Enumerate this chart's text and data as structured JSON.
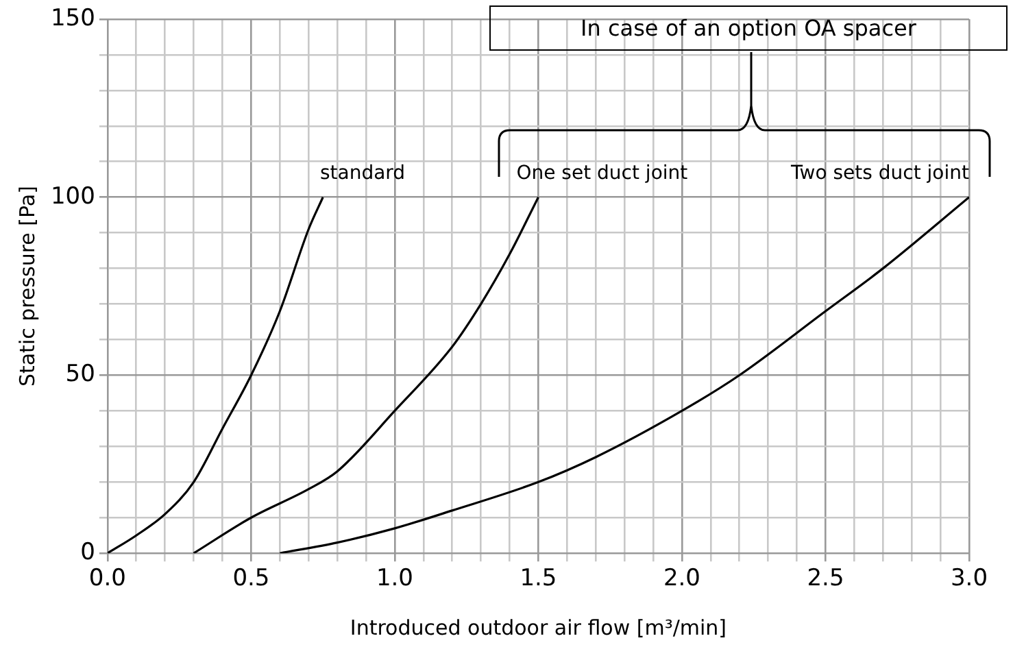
{
  "chart_data": {
    "type": "line",
    "xlabel": "Introduced outdoor air flow [m³/min]",
    "ylabel": "Static pressure [Pa]",
    "xlim": [
      0,
      3.0
    ],
    "ylim": [
      0,
      150
    ],
    "xticks": [
      {
        "value": 0,
        "label": "0.0"
      },
      {
        "value": 0.1,
        "label": null
      },
      {
        "value": 0.2,
        "label": null
      },
      {
        "value": 0.3,
        "label": null
      },
      {
        "value": 0.4,
        "label": null
      },
      {
        "value": 0.5,
        "label": "0.5"
      },
      {
        "value": 0.6,
        "label": null
      },
      {
        "value": 0.7,
        "label": null
      },
      {
        "value": 0.8,
        "label": null
      },
      {
        "value": 0.9,
        "label": null
      },
      {
        "value": 1.0,
        "label": "1.0"
      },
      {
        "value": 1.1,
        "label": null
      },
      {
        "value": 1.2,
        "label": null
      },
      {
        "value": 1.3,
        "label": null
      },
      {
        "value": 1.4,
        "label": null
      },
      {
        "value": 1.5,
        "label": "1.5"
      },
      {
        "value": 1.6,
        "label": null
      },
      {
        "value": 1.7,
        "label": null
      },
      {
        "value": 1.8,
        "label": null
      },
      {
        "value": 1.9,
        "label": null
      },
      {
        "value": 2.0,
        "label": "2.0"
      },
      {
        "value": 2.1,
        "label": null
      },
      {
        "value": 2.2,
        "label": null
      },
      {
        "value": 2.3,
        "label": null
      },
      {
        "value": 2.4,
        "label": null
      },
      {
        "value": 2.5,
        "label": "2.5"
      },
      {
        "value": 2.6,
        "label": null
      },
      {
        "value": 2.7,
        "label": null
      },
      {
        "value": 2.8,
        "label": null
      },
      {
        "value": 2.9,
        "label": null
      },
      {
        "value": 3.0,
        "label": "3.0"
      }
    ],
    "yticks": [
      0,
      {
        "value": 10,
        "label": null
      },
      {
        "value": 20,
        "label": null
      },
      {
        "value": 30,
        "label": null
      },
      {
        "value": 40,
        "label": null
      },
      50,
      {
        "value": 60,
        "label": null
      },
      {
        "value": 70,
        "label": null
      },
      {
        "value": 80,
        "label": null
      },
      {
        "value": 90,
        "label": null
      },
      100,
      {
        "value": 110,
        "label": null
      },
      {
        "value": 120,
        "label": null
      },
      {
        "value": 130,
        "label": null
      },
      {
        "value": 140,
        "label": null
      },
      150
    ],
    "grid": true,
    "legend": false,
    "marker": "none",
    "line_style": "solid",
    "annotations": [
      "In case of an option OA spacer"
    ],
    "series": [
      {
        "name": "standard",
        "color": "#000000",
        "x": [
          0,
          0.1,
          0.2,
          0.3,
          0.4,
          0.5,
          0.6,
          0.7,
          0.75
        ],
        "values": [
          0,
          5,
          11,
          20,
          35,
          50,
          68,
          91,
          100
        ]
      },
      {
        "name": "One set duct joint",
        "color": "#000000",
        "x": [
          0.3,
          0.5,
          0.7,
          0.8,
          1.0,
          1.2,
          1.3,
          1.4,
          1.5
        ],
        "values": [
          0,
          10,
          18,
          23,
          40,
          58,
          70,
          84,
          100
        ]
      },
      {
        "name": "Two sets duct joint",
        "color": "#000000",
        "x": [
          0.6,
          0.8,
          1.0,
          1.2,
          1.5,
          1.7,
          2.0,
          2.2,
          2.5,
          2.7,
          3.0
        ],
        "values": [
          0,
          3,
          7,
          12,
          20,
          27,
          40,
          50,
          68,
          80,
          100
        ]
      }
    ]
  }
}
